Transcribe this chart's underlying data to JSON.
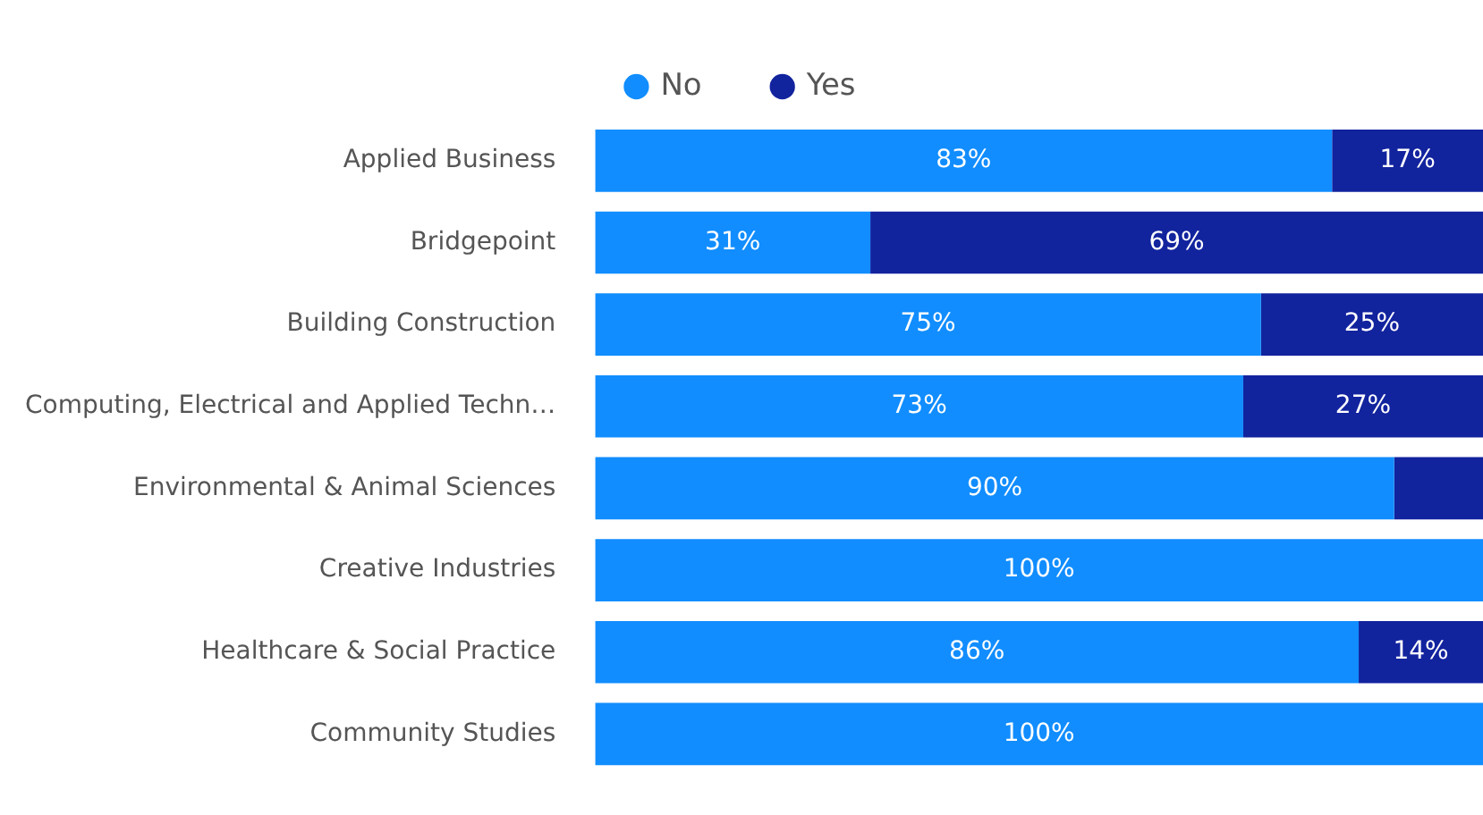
{
  "chart_data": {
    "type": "bar",
    "orientation": "horizontal",
    "stacked": true,
    "legend": "top",
    "tick_labels": "y",
    "xlim": [
      0,
      100
    ],
    "categories": [
      "Applied Business",
      "Bridgepoint",
      "Building Construction",
      "Computing, Electrical and Applied Techn…",
      "Environmental & Animal Sciences",
      "Creative Industries",
      "Healthcare & Social Practice",
      "Community Studies"
    ],
    "series": [
      {
        "name": "No",
        "color": "#118dff",
        "values": [
          83,
          31,
          75,
          73,
          90,
          100,
          86,
          100
        ],
        "value_labels": [
          "83%",
          "31%",
          "75%",
          "73%",
          "90%",
          "100%",
          "86%",
          "100%"
        ]
      },
      {
        "name": "Yes",
        "color": "#12239e",
        "values": [
          17,
          69,
          25,
          27,
          10,
          0,
          14,
          0
        ],
        "value_labels": [
          "17%",
          "69%",
          "25%",
          "27%",
          null,
          null,
          "14%",
          null
        ]
      }
    ]
  }
}
